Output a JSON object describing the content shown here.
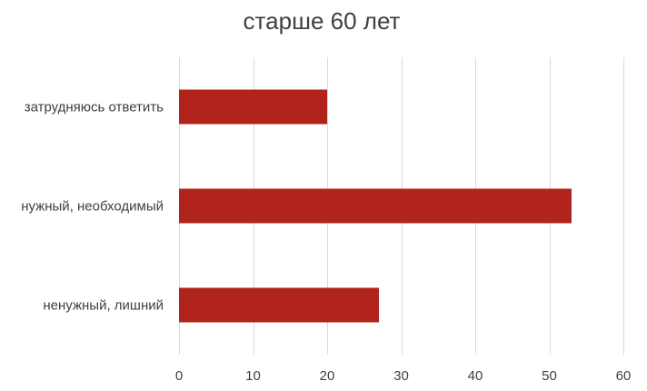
{
  "chart_data": {
    "type": "bar",
    "orientation": "horizontal",
    "title": "старше 60 лет",
    "categories": [
      "затрудняюсь ответить",
      "нужный, необходимый",
      "ненужный, лишний"
    ],
    "values": [
      20,
      53,
      27
    ],
    "xlim": [
      0,
      60
    ],
    "ticks": [
      "0",
      "10",
      "20",
      "30",
      "40",
      "50",
      "60"
    ],
    "tick_values": [
      0,
      10,
      20,
      30,
      40,
      50,
      60
    ],
    "bar_color": "#b0241c",
    "grid": true,
    "legend": "none"
  }
}
